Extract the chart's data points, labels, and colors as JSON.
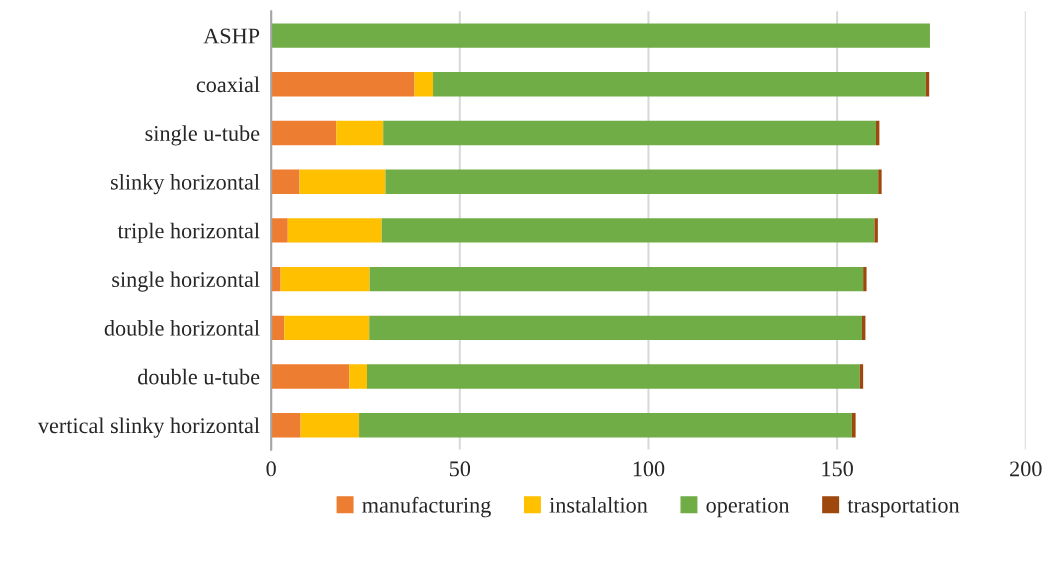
{
  "chart_data": {
    "type": "bar",
    "orientation": "horizontal",
    "stacked": true,
    "categories": [
      "ASHP",
      "coaxial",
      "single u-tube",
      "slinky horizontal",
      "triple horizontal",
      "single horizontal",
      "double horizontal",
      "double u-tube",
      "vertical slinky horizontal"
    ],
    "series": [
      {
        "name": "manufacturing",
        "color": "#ed7d31",
        "values": [
          0,
          38.0,
          17.3,
          7.5,
          4.4,
          2.5,
          3.5,
          20.7,
          7.8
        ]
      },
      {
        "name": "instalaltion",
        "color": "#ffc000",
        "values": [
          0,
          4.9,
          12.4,
          22.8,
          24.9,
          23.6,
          22.5,
          4.7,
          15.5
        ]
      },
      {
        "name": "operation",
        "color": "#70ad47",
        "values": [
          174.6,
          130.6,
          130.6,
          130.6,
          130.6,
          130.8,
          130.6,
          130.6,
          130.6
        ]
      },
      {
        "name": "trasportation",
        "color": "#9e480e",
        "values": [
          0,
          0.9,
          0.9,
          0.9,
          0.9,
          0.9,
          0.9,
          0.9,
          1.0
        ]
      }
    ],
    "xlim": [
      0,
      200
    ],
    "xticks": [
      0,
      50,
      100,
      150,
      200
    ],
    "grid": "x",
    "legend": "bottom"
  }
}
